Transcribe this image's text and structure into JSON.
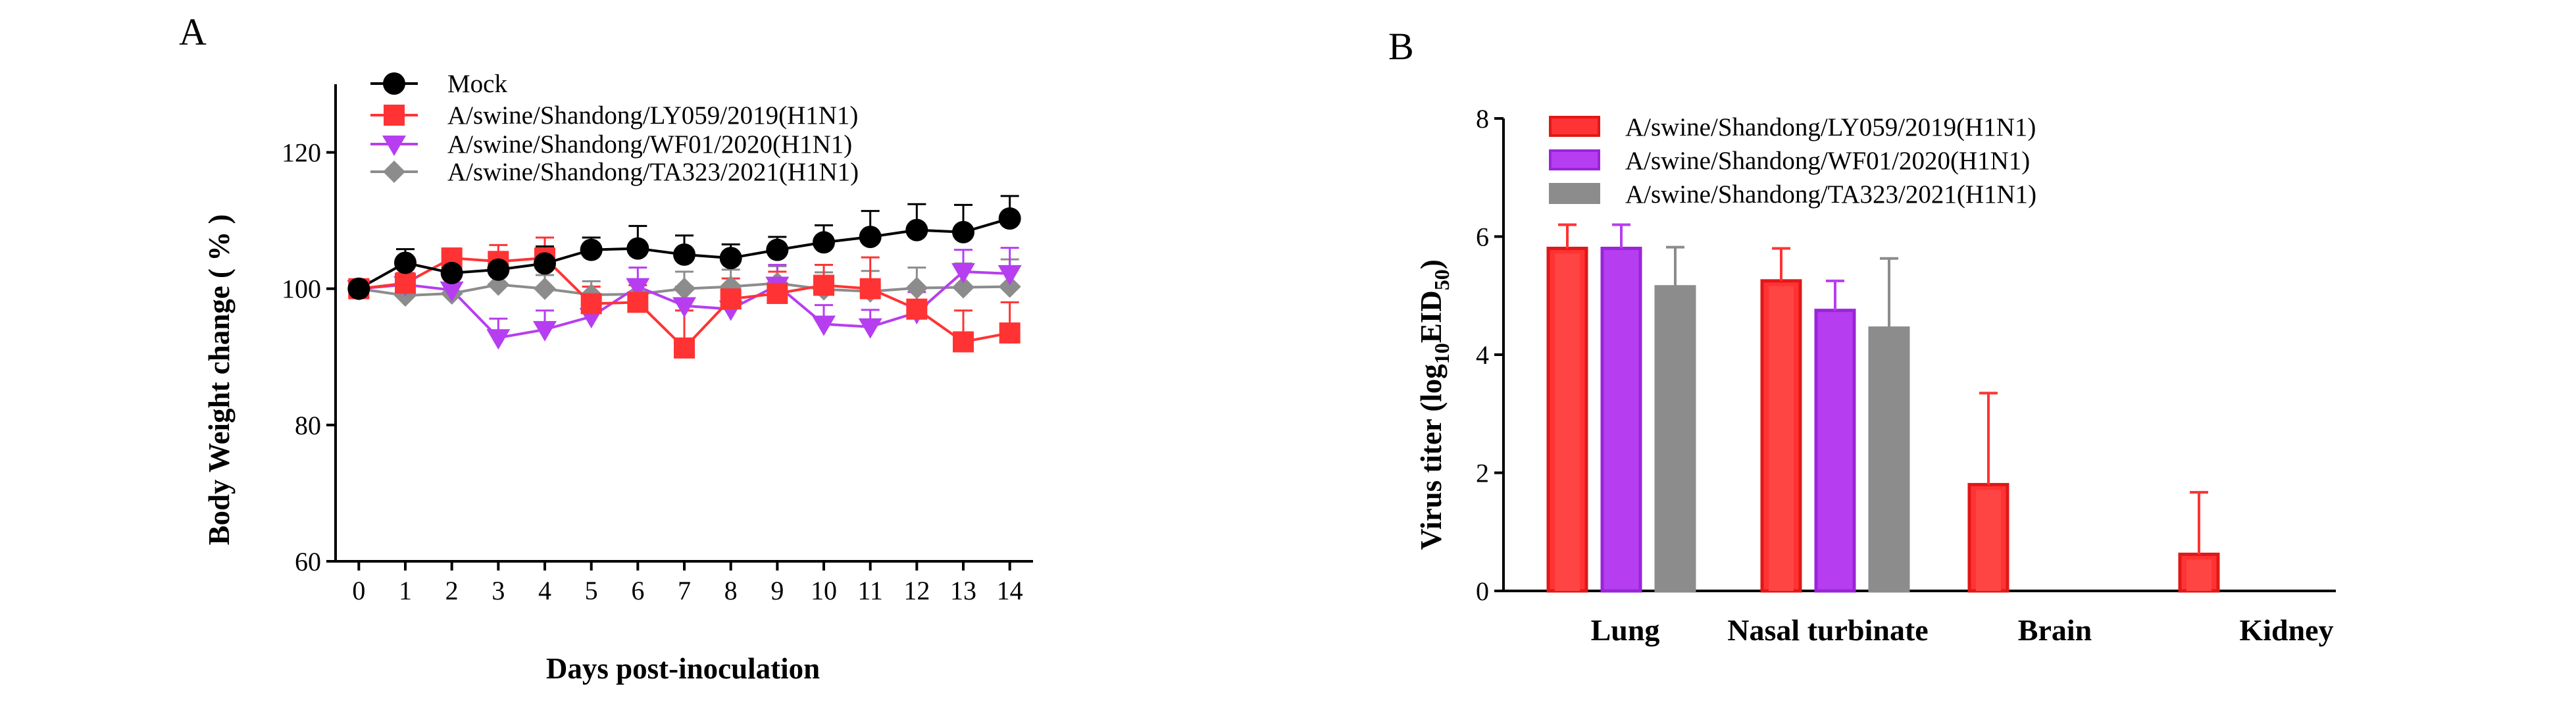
{
  "panels": {
    "a": "A",
    "b": "B"
  },
  "colors": {
    "mock": "#000000",
    "ly059": "#ff3333",
    "wf01": "#b63ef0",
    "ta323": "#8c8c8c"
  },
  "chart_data": [
    {
      "type": "line",
      "panel": "A",
      "xlabel": "Days post-inoculation",
      "ylabel": "Body Weight change ( % )",
      "ylim": [
        60,
        130
      ],
      "yticks": [
        60,
        80,
        100,
        120
      ],
      "x": [
        0,
        1,
        2,
        3,
        4,
        5,
        6,
        7,
        8,
        9,
        10,
        11,
        12,
        13,
        14
      ],
      "legend_position": "top",
      "series": [
        {
          "name": "Mock",
          "marker": "circle",
          "color_key": "mock",
          "values": [
            100,
            103.8,
            102.3,
            102.8,
            103.7,
            105.7,
            105.9,
            105,
            104.5,
            105.7,
            106.8,
            107.6,
            108.6,
            108.3,
            110.3
          ],
          "errors": [
            0.8,
            2,
            1.5,
            2,
            2.5,
            1.8,
            3.3,
            2.8,
            2,
            1.9,
            2.5,
            3.8,
            3.8,
            4,
            3.3
          ]
        },
        {
          "name": "A/swine/Shandong/LY059/2019(H1N1)",
          "marker": "square",
          "color_key": "ly059",
          "values": [
            100,
            100.8,
            104.5,
            104,
            104.5,
            97.8,
            98,
            91.3,
            98.5,
            99.3,
            100.5,
            100,
            97,
            92.2,
            93.5
          ],
          "errors": [
            0.8,
            1.5,
            1.4,
            2.4,
            3,
            2.5,
            2.5,
            5.5,
            3,
            3.2,
            3,
            4.6,
            3,
            4.6,
            4.5
          ]
        },
        {
          "name": "A/swine/Shandong/WF01/2020(H1N1)",
          "marker": "triangle-down",
          "color_key": "wf01",
          "values": [
            100,
            100.6,
            99.8,
            92.8,
            94,
            95.9,
            100.3,
            97.5,
            97,
            100.5,
            94.8,
            94.4,
            96.5,
            102.5,
            102.2
          ],
          "errors": [
            0.8,
            1.5,
            2,
            2.8,
            2.8,
            2.5,
            2.8,
            2.8,
            3.5,
            3,
            2.8,
            2.5,
            3,
            3.2,
            3.8
          ]
        },
        {
          "name": "A/swine/Shandong/TA323/2021(H1N1)",
          "marker": "diamond",
          "color_key": "ta323",
          "values": [
            100,
            99,
            99.3,
            100.6,
            100,
            99.1,
            99.2,
            100,
            100.3,
            100.8,
            99.9,
            99.6,
            100.1,
            100.2,
            100.3
          ],
          "errors": [
            0.8,
            1.5,
            1.5,
            2,
            2,
            2,
            2,
            2.5,
            2.5,
            2.5,
            2.5,
            3,
            3,
            3.5,
            4
          ]
        }
      ]
    },
    {
      "type": "bar",
      "panel": "B",
      "ylabel_prefix": "Virus titer (log",
      "ylabel_sub": "10",
      "ylabel_main": "EID",
      "ylabel_sub2": "50",
      "ylabel_suffix": ")",
      "ylim": [
        0,
        8
      ],
      "yticks": [
        0,
        2,
        4,
        6,
        8
      ],
      "categories": [
        "Lung",
        "Nasal turbinate",
        "Brain",
        "Kidney"
      ],
      "legend_position": "top-left",
      "series": [
        {
          "name": "A/swine/Shandong/LY059/2019(H1N1)",
          "color_key": "ly059",
          "values": [
            5.8,
            5.25,
            1.8,
            0.62
          ],
          "errors": [
            0.4,
            0.55,
            1.55,
            1.05
          ]
        },
        {
          "name": "A/swine/Shandong/WF01/2020(H1N1)",
          "color_key": "wf01",
          "values": [
            5.8,
            4.75,
            0,
            0
          ],
          "errors": [
            0.4,
            0.5,
            0,
            0
          ]
        },
        {
          "name": "A/swine/Shandong/TA323/2021(H1N1)",
          "color_key": "ta323",
          "values": [
            5.15,
            4.45,
            0,
            0
          ],
          "errors": [
            0.67,
            1.18,
            0,
            0
          ]
        }
      ]
    }
  ]
}
